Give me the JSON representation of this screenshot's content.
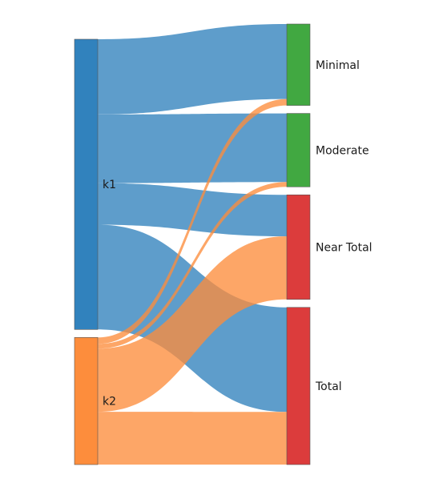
{
  "chart_data": {
    "type": "sankey",
    "title": "",
    "sources": [
      {
        "id": "k1",
        "label": "k1",
        "color": "#3182bd"
      },
      {
        "id": "k2",
        "label": "k2",
        "color": "#fd8d3c"
      }
    ],
    "targets": [
      {
        "id": "minimal",
        "label": "Minimal",
        "color": "#41a841"
      },
      {
        "id": "moderate",
        "label": "Moderate",
        "color": "#41a841"
      },
      {
        "id": "near_total",
        "label": "Near Total",
        "color": "#dc3c3c"
      },
      {
        "id": "total",
        "label": "Total",
        "color": "#dc3c3c"
      }
    ],
    "links": [
      {
        "source": "k1",
        "target": "minimal",
        "value": 94
      },
      {
        "source": "k1",
        "target": "moderate",
        "value": 86
      },
      {
        "source": "k1",
        "target": "near_total",
        "value": 52
      },
      {
        "source": "k1",
        "target": "total",
        "value": 131
      },
      {
        "source": "k2",
        "target": "minimal",
        "value": 8
      },
      {
        "source": "k2",
        "target": "moderate",
        "value": 6
      },
      {
        "source": "k2",
        "target": "near_total",
        "value": 79
      },
      {
        "source": "k2",
        "target": "total",
        "value": 66
      }
    ],
    "link_colors": {
      "k1": "#3182bd",
      "k2": "#fd8d3c"
    },
    "link_opacity": 0.78
  }
}
